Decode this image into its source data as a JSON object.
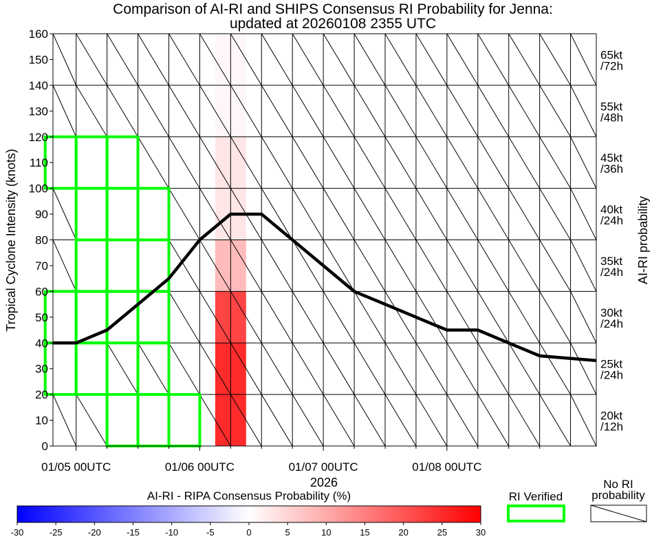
{
  "chart_data": {
    "type": "line",
    "title_line1": "Comparison of AI-RI and SHIPS Consensus RI Probability for Jenna:",
    "title_line2": "updated at 20260108 2355 UTC",
    "ylabel": "Tropical Cyclone Intensity (knots)",
    "right_label": "AI-RI probability",
    "xlabel": "2026",
    "ylim": [
      0,
      160
    ],
    "yticks": [
      0,
      10,
      20,
      30,
      40,
      50,
      60,
      70,
      80,
      90,
      100,
      110,
      120,
      130,
      140,
      150,
      160
    ],
    "x_range_hours": [
      -4.5,
      101.0
    ],
    "x_ticks": [
      {
        "label": "01/05 00UTC",
        "hour": 0
      },
      {
        "label": "01/06 00UTC",
        "hour": 24
      },
      {
        "label": "01/07 00UTC",
        "hour": 48
      },
      {
        "label": "01/08 00UTC",
        "hour": 72
      }
    ],
    "column_hours": [
      -3,
      3,
      9,
      15,
      21,
      27,
      33,
      39,
      45,
      51,
      57,
      63,
      69,
      75,
      81,
      87,
      93,
      99
    ],
    "intensity_series": {
      "name": "Intensity",
      "points": [
        [
          -6,
          40
        ],
        [
          0,
          40
        ],
        [
          6,
          45
        ],
        [
          12,
          55
        ],
        [
          18,
          65
        ],
        [
          24,
          80
        ],
        [
          30,
          90
        ],
        [
          36,
          90
        ],
        [
          42,
          80
        ],
        [
          48,
          70
        ],
        [
          54,
          60
        ],
        [
          60,
          55
        ],
        [
          66,
          50
        ],
        [
          72,
          45
        ],
        [
          78,
          45
        ],
        [
          84,
          40
        ],
        [
          90,
          35
        ],
        [
          96,
          34
        ],
        [
          102,
          33
        ]
      ]
    },
    "rows": [
      {
        "lo": 0,
        "hi": 20,
        "label_kt": "20kt",
        "label_h": "/12h"
      },
      {
        "lo": 20,
        "hi": 40,
        "label_kt": "25kt",
        "label_h": "/24h"
      },
      {
        "lo": 40,
        "hi": 60,
        "label_kt": "30kt",
        "label_h": "/24h"
      },
      {
        "lo": 60,
        "hi": 80,
        "label_kt": "35kt",
        "label_h": "/24h"
      },
      {
        "lo": 80,
        "hi": 100,
        "label_kt": "40kt",
        "label_h": "/24h"
      },
      {
        "lo": 100,
        "hi": 120,
        "label_kt": "45kt",
        "label_h": "/36h"
      },
      {
        "lo": 120,
        "hi": 140,
        "label_kt": "55kt",
        "label_h": "/48h"
      },
      {
        "lo": 140,
        "hi": 160,
        "label_kt": "65kt",
        "label_h": "/72h"
      }
    ],
    "probability_cells": [
      {
        "column_hour": 30,
        "row_lo": 0,
        "row_hi": 20,
        "value": 25
      },
      {
        "column_hour": 30,
        "row_lo": 20,
        "row_hi": 40,
        "value": 25
      },
      {
        "column_hour": 30,
        "row_lo": 40,
        "row_hi": 60,
        "value": 22
      },
      {
        "column_hour": 30,
        "row_lo": 60,
        "row_hi": 80,
        "value": 8
      },
      {
        "column_hour": 30,
        "row_lo": 80,
        "row_hi": 100,
        "value": 3
      },
      {
        "column_hour": 30,
        "row_lo": 100,
        "row_hi": 120,
        "value": 3
      },
      {
        "column_hour": 30,
        "row_lo": 120,
        "row_hi": 140,
        "value": 1
      },
      {
        "column_hour": 30,
        "row_lo": 140,
        "row_hi": 160,
        "value": 1
      }
    ],
    "no_probability_cells": [
      {
        "row_lo": 0,
        "row_hi": 20,
        "column_hours": [
          -3,
          3,
          27,
          33,
          39,
          45,
          51,
          57,
          63,
          69,
          75,
          81,
          87,
          93,
          99
        ]
      },
      {
        "row_lo": 20,
        "row_hi": 40,
        "column_hours": [
          9,
          15,
          21,
          27,
          33,
          39,
          45,
          51,
          57,
          63,
          69,
          75,
          81,
          87,
          93,
          99
        ]
      },
      {
        "row_lo": 40,
        "row_hi": 60,
        "column_hours": [
          21,
          27,
          33,
          39,
          45,
          51,
          57,
          63,
          69,
          75,
          81,
          87,
          93,
          99
        ]
      },
      {
        "row_lo": 60,
        "row_hi": 80,
        "column_hours": [
          -3,
          21,
          27,
          33,
          39,
          45,
          51,
          57,
          63,
          69,
          75,
          81,
          87,
          93,
          99
        ]
      },
      {
        "row_lo": 80,
        "row_hi": 100,
        "column_hours": [
          -3,
          21,
          27,
          33,
          39,
          45,
          51,
          57,
          63,
          69,
          75,
          81,
          87,
          93,
          99
        ]
      },
      {
        "row_lo": 100,
        "row_hi": 120,
        "column_hours": [
          15,
          21,
          27,
          33,
          39,
          45,
          51,
          57,
          63,
          69,
          75,
          81,
          87,
          93,
          99
        ]
      },
      {
        "row_lo": 120,
        "row_hi": 140,
        "column_hours": [
          -3,
          3,
          9,
          15,
          21,
          27,
          33,
          39,
          45,
          51,
          57,
          63,
          69,
          75,
          81,
          87,
          93,
          99
        ]
      },
      {
        "row_lo": 140,
        "row_hi": 160,
        "column_hours": [
          -3,
          3,
          9,
          15,
          21,
          27,
          33,
          39,
          45,
          51,
          57,
          63,
          69,
          75,
          81,
          87,
          93,
          99
        ]
      }
    ],
    "ri_verified_cells": [
      {
        "column_hour": -3,
        "row_lo": 20,
        "row_hi": 40
      },
      {
        "column_hour": -3,
        "row_lo": 40,
        "row_hi": 60
      },
      {
        "column_hour": -3,
        "row_lo": 100,
        "row_hi": 120
      },
      {
        "column_hour": 3,
        "row_lo": 20,
        "row_hi": 40
      },
      {
        "column_hour": 3,
        "row_lo": 40,
        "row_hi": 60
      },
      {
        "column_hour": 3,
        "row_lo": 60,
        "row_hi": 80
      },
      {
        "column_hour": 3,
        "row_lo": 80,
        "row_hi": 100
      },
      {
        "column_hour": 3,
        "row_lo": 100,
        "row_hi": 120
      },
      {
        "column_hour": 9,
        "row_lo": 0,
        "row_hi": 20
      },
      {
        "column_hour": 9,
        "row_lo": 40,
        "row_hi": 60
      },
      {
        "column_hour": 9,
        "row_lo": 60,
        "row_hi": 80
      },
      {
        "column_hour": 9,
        "row_lo": 80,
        "row_hi": 100
      },
      {
        "column_hour": 9,
        "row_lo": 100,
        "row_hi": 120
      },
      {
        "column_hour": 15,
        "row_lo": 0,
        "row_hi": 20
      },
      {
        "column_hour": 15,
        "row_lo": 20,
        "row_hi": 40
      },
      {
        "column_hour": 15,
        "row_lo": 40,
        "row_hi": 60
      },
      {
        "column_hour": 15,
        "row_lo": 60,
        "row_hi": 80
      },
      {
        "column_hour": 15,
        "row_lo": 80,
        "row_hi": 100
      },
      {
        "column_hour": 21,
        "row_lo": 0,
        "row_hi": 20
      }
    ],
    "colorbar": {
      "title": "AI-RI - RIPA Consensus Probability (%)",
      "range": [
        -30,
        30
      ],
      "ticks": [
        -30,
        -25,
        -20,
        -15,
        -10,
        -5,
        0,
        5,
        10,
        15,
        20,
        25,
        30
      ],
      "low_color": "#0000ff",
      "mid_color": "#ffffff",
      "high_color": "#ff0000"
    },
    "legend": {
      "verified_label": "RI Verified",
      "verified_color": "#00ff00",
      "no_prob_line1": "No RI",
      "no_prob_line2": "probability"
    },
    "line_color": "#000000"
  }
}
